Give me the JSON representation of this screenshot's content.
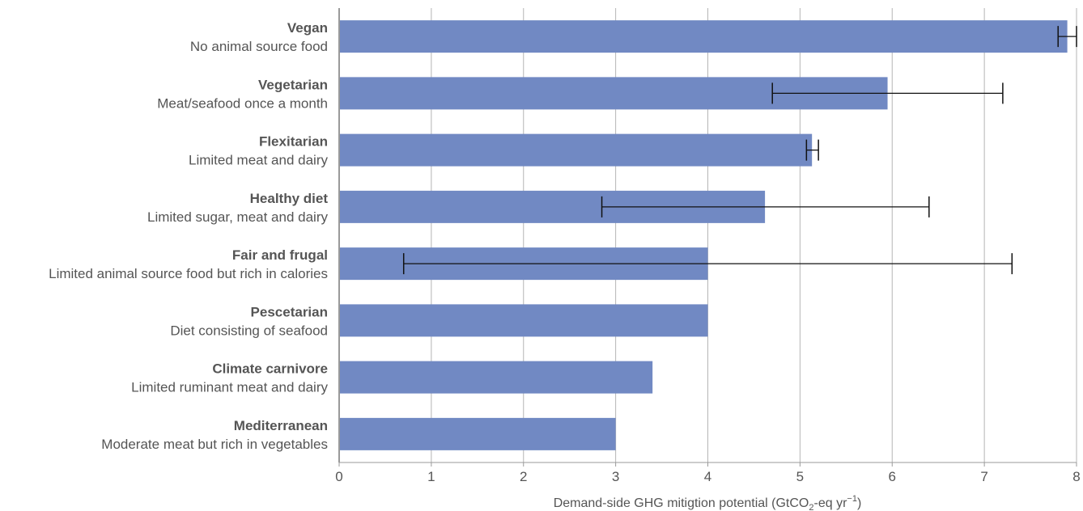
{
  "colors": {
    "bar": "#7189c3",
    "grid": "#b5b5b5",
    "axis": "#9a9a9a",
    "error_bar": "#111111",
    "text": "#555555"
  },
  "chart_data": {
    "type": "bar",
    "orientation": "horizontal",
    "title": "",
    "xlabel_main": "Demand-side GHG mitigtion potential (GtCO",
    "xlabel_sub": "2",
    "xlabel_mid": "-eq yr",
    "xlabel_sup": "−1",
    "xlabel_end": ")",
    "xlim": [
      0,
      8
    ],
    "xticks": [
      "0",
      "1",
      "2",
      "3",
      "4",
      "5",
      "6",
      "7",
      "8"
    ],
    "grid": true,
    "categories": [
      {
        "name": "Vegan",
        "description": "No animal source food",
        "value": 7.9,
        "error_low": 7.8,
        "error_high": 8.0
      },
      {
        "name": "Vegetarian",
        "description": "Meat/seafood once a month",
        "value": 5.95,
        "error_low": 4.7,
        "error_high": 7.2
      },
      {
        "name": "Flexitarian",
        "description": "Limited meat and dairy",
        "value": 5.13,
        "error_low": 5.07,
        "error_high": 5.2
      },
      {
        "name": "Healthy diet",
        "description": "Limited sugar, meat and dairy",
        "value": 4.62,
        "error_low": 2.85,
        "error_high": 6.4
      },
      {
        "name": "Fair and frugal",
        "description": "Limited animal source food but rich in calories",
        "value": 4.0,
        "error_low": 0.7,
        "error_high": 7.3
      },
      {
        "name": "Pescetarian",
        "description": "Diet consisting of seafood",
        "value": 4.0,
        "error_low": null,
        "error_high": null
      },
      {
        "name": "Climate carnivore",
        "description": "Limited ruminant meat and dairy",
        "value": 3.4,
        "error_low": null,
        "error_high": null
      },
      {
        "name": "Mediterranean",
        "description": "Moderate meat but rich in vegetables",
        "value": 3.0,
        "error_low": null,
        "error_high": null
      }
    ]
  }
}
